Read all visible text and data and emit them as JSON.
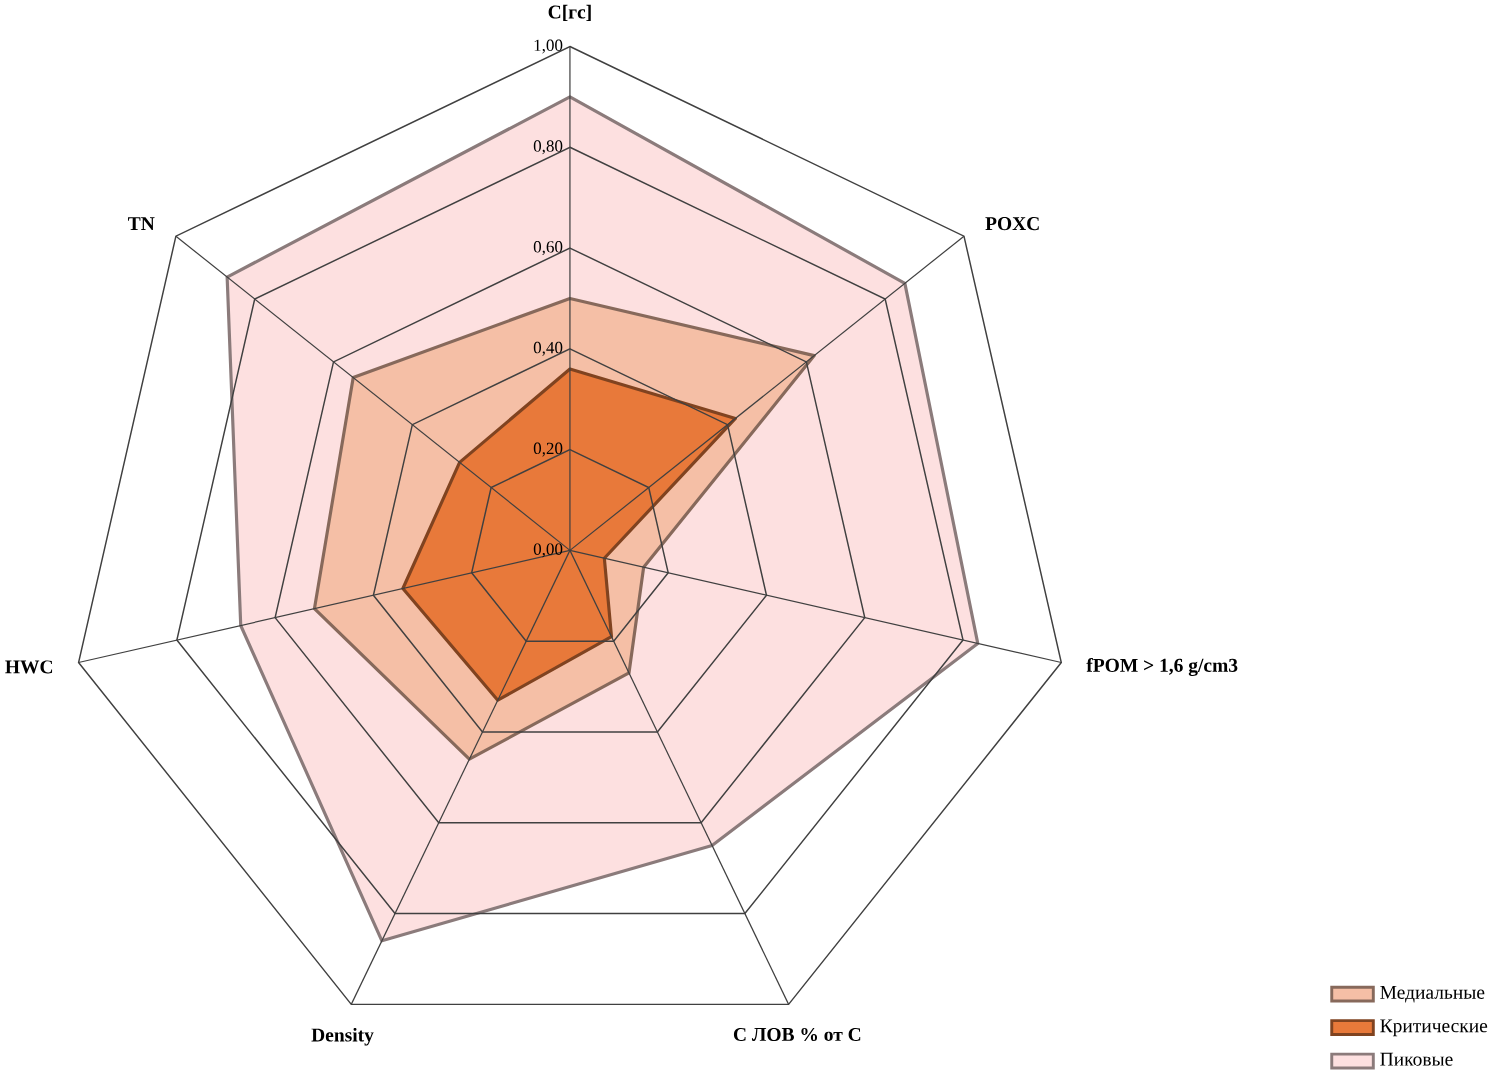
{
  "chart_data": {
    "type": "radar",
    "categories": [
      "C[гс]",
      "POXC",
      "fPOM > 1,6 g/cm3",
      "C ЛОВ % от C",
      "Density",
      "HWC",
      "TN"
    ],
    "ylim": [
      0,
      1
    ],
    "yticks": [
      {
        "value": 0,
        "label": "0,00"
      },
      {
        "value": 0.2,
        "label": "0,20"
      },
      {
        "value": 0.4,
        "label": "0,40"
      },
      {
        "value": 0.6,
        "label": "0,60"
      },
      {
        "value": 0.8,
        "label": "0,80"
      },
      {
        "value": 1,
        "label": "1,00"
      }
    ],
    "grid": true,
    "legend": "bottom right",
    "series": [
      {
        "name": "Медиальные",
        "color": "#f5bfa6",
        "values": [
          0.5,
          0.62,
          0.15,
          0.27,
          0.46,
          0.52,
          0.55
        ]
      },
      {
        "name": "Критические",
        "color": "#e8793a",
        "values": [
          0.36,
          0.42,
          0.07,
          0.19,
          0.33,
          0.34,
          0.28
        ]
      },
      {
        "name": "Пиковые",
        "color": "#fde0e0",
        "values": [
          0.9,
          0.85,
          0.83,
          0.65,
          0.86,
          0.67,
          0.87
        ]
      }
    ]
  }
}
